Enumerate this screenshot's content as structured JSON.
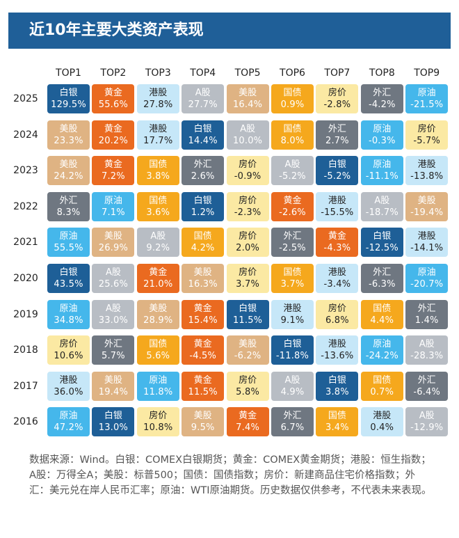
{
  "title": "近10年主要大类资产表现",
  "footnote": "数据来源：Wind。白银：COMEX白银期货；黄金：COMEX黄金期货；港股：恒生指数；A股：万得全A；美股：标普500；国债：国债指数；房价：新建商品住宅价格指数；外汇：美元兑在岸人民币汇率；原油：WTI原油期货。历史数据仅供参考，不代表未来表现。",
  "asset_colors": {
    "白银": {
      "bg": "#1e5f97",
      "fg": "#ffffff"
    },
    "黄金": {
      "bg": "#ea6a20",
      "fg": "#ffffff"
    },
    "港股": {
      "bg": "#c6e7f8",
      "fg": "#222222"
    },
    "A股": {
      "bg": "#b8bdc4",
      "fg": "#ffffff"
    },
    "美股": {
      "bg": "#dfb383",
      "fg": "#ffffff"
    },
    "国债": {
      "bg": "#f5a81d",
      "fg": "#ffffff"
    },
    "房价": {
      "bg": "#fbe9a3",
      "fg": "#222222"
    },
    "外汇": {
      "bg": "#6f7781",
      "fg": "#ffffff"
    },
    "原油": {
      "bg": "#45b7eb",
      "fg": "#ffffff"
    }
  },
  "chart_data": {
    "type": "table",
    "columns": [
      "TOP1",
      "TOP2",
      "TOP3",
      "TOP4",
      "TOP5",
      "TOP6",
      "TOP7",
      "TOP8",
      "TOP9"
    ],
    "rows": [
      {
        "year": "2025",
        "cells": [
          [
            "白银",
            "129.5%"
          ],
          [
            "黄金",
            "55.6%"
          ],
          [
            "港股",
            "27.8%"
          ],
          [
            "A股",
            "27.7%"
          ],
          [
            "美股",
            "16.4%"
          ],
          [
            "国债",
            "0.9%"
          ],
          [
            "房价",
            "-2.8%"
          ],
          [
            "外汇",
            "-4.2%"
          ],
          [
            "原油",
            "-21.5%"
          ]
        ]
      },
      {
        "year": "2024",
        "cells": [
          [
            "美股",
            "23.3%"
          ],
          [
            "黄金",
            "20.2%"
          ],
          [
            "港股",
            "17.7%"
          ],
          [
            "白银",
            "14.4%"
          ],
          [
            "A股",
            "10.0%"
          ],
          [
            "国债",
            "8.0%"
          ],
          [
            "外汇",
            "2.7%"
          ],
          [
            "原油",
            "-0.3%"
          ],
          [
            "房价",
            "-5.7%"
          ]
        ]
      },
      {
        "year": "2023",
        "cells": [
          [
            "美股",
            "24.2%"
          ],
          [
            "黄金",
            "7.2%"
          ],
          [
            "国债",
            "3.8%"
          ],
          [
            "外汇",
            "2.6%"
          ],
          [
            "房价",
            "-0.9%"
          ],
          [
            "A股",
            "-5.2%"
          ],
          [
            "白银",
            "-5.2%"
          ],
          [
            "原油",
            "-11.1%"
          ],
          [
            "港股",
            "-13.8%"
          ]
        ]
      },
      {
        "year": "2022",
        "cells": [
          [
            "外汇",
            "8.3%"
          ],
          [
            "原油",
            "7.1%"
          ],
          [
            "国债",
            "3.6%"
          ],
          [
            "白银",
            "1.2%"
          ],
          [
            "房价",
            "-2.3%"
          ],
          [
            "黄金",
            "-2.6%"
          ],
          [
            "港股",
            "-15.5%"
          ],
          [
            "A股",
            "-18.7%"
          ],
          [
            "美股",
            "-19.4%"
          ]
        ]
      },
      {
        "year": "2021",
        "cells": [
          [
            "原油",
            "55.5%"
          ],
          [
            "美股",
            "26.9%"
          ],
          [
            "A股",
            "9.2%"
          ],
          [
            "国债",
            "4.2%"
          ],
          [
            "房价",
            "2.0%"
          ],
          [
            "外汇",
            "-2.5%"
          ],
          [
            "黄金",
            "-4.3%"
          ],
          [
            "白银",
            "-12.5%"
          ],
          [
            "港股",
            "-14.1%"
          ]
        ]
      },
      {
        "year": "2020",
        "cells": [
          [
            "白银",
            "43.5%"
          ],
          [
            "A股",
            "25.6%"
          ],
          [
            "黄金",
            "21.0%"
          ],
          [
            "美股",
            "16.3%"
          ],
          [
            "房价",
            "3.7%"
          ],
          [
            "国债",
            "3.7%"
          ],
          [
            "港股",
            "-3.4%"
          ],
          [
            "外汇",
            "-6.3%"
          ],
          [
            "原油",
            "-20.7%"
          ]
        ]
      },
      {
        "year": "2019",
        "cells": [
          [
            "原油",
            "34.8%"
          ],
          [
            "A股",
            "33.0%"
          ],
          [
            "美股",
            "28.9%"
          ],
          [
            "黄金",
            "15.4%"
          ],
          [
            "白银",
            "11.5%"
          ],
          [
            "港股",
            "9.1%"
          ],
          [
            "房价",
            "6.8%"
          ],
          [
            "国债",
            "4.4%"
          ],
          [
            "外汇",
            "1.4%"
          ]
        ]
      },
      {
        "year": "2018",
        "cells": [
          [
            "房价",
            "10.6%"
          ],
          [
            "外汇",
            "5.7%"
          ],
          [
            "国债",
            "5.6%"
          ],
          [
            "黄金",
            "-4.5%"
          ],
          [
            "美股",
            "-6.2%"
          ],
          [
            "白银",
            "-11.8%"
          ],
          [
            "港股",
            "-13.6%"
          ],
          [
            "原油",
            "-24.2%"
          ],
          [
            "A股",
            "-28.3%"
          ]
        ]
      },
      {
        "year": "2017",
        "cells": [
          [
            "港股",
            "36.0%"
          ],
          [
            "美股",
            "19.4%"
          ],
          [
            "原油",
            "11.8%"
          ],
          [
            "黄金",
            "11.5%"
          ],
          [
            "房价",
            "5.8%"
          ],
          [
            "A股",
            "4.9%"
          ],
          [
            "白银",
            "3.8%"
          ],
          [
            "国债",
            "0.7%"
          ],
          [
            "外汇",
            "-6.4%"
          ]
        ]
      },
      {
        "year": "2016",
        "cells": [
          [
            "原油",
            "47.2%"
          ],
          [
            "白银",
            "13.0%"
          ],
          [
            "房价",
            "10.8%"
          ],
          [
            "美股",
            "9.5%"
          ],
          [
            "黄金",
            "7.4%"
          ],
          [
            "外汇",
            "6.7%"
          ],
          [
            "国债",
            "3.4%"
          ],
          [
            "港股",
            "0.4%"
          ],
          [
            "A股",
            "-12.9%"
          ]
        ]
      }
    ]
  }
}
